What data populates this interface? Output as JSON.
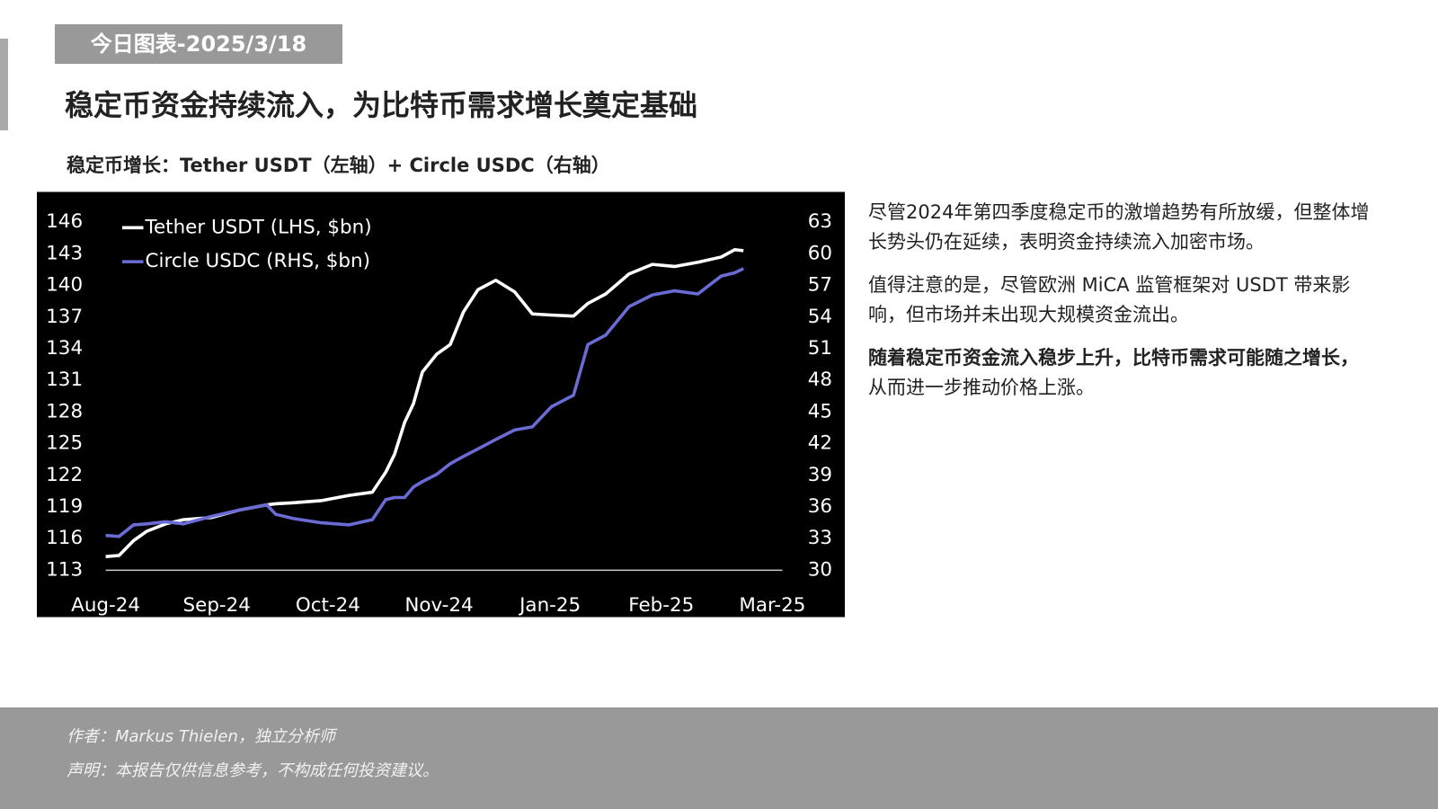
{
  "header": {
    "tag": "今日图表-2025/3/18",
    "title": "稳定币资金持续流入，为比特币需求增长奠定基础",
    "subtitle": "稳定币增长：Tether USDT（左轴）+ Circle USDC（右轴）"
  },
  "chart_data": {
    "type": "line",
    "x": [
      0,
      0.12,
      0.25,
      0.37,
      0.54,
      0.7,
      0.95,
      1.2,
      1.45,
      1.53,
      1.69,
      1.94,
      2.19,
      2.4,
      2.52,
      2.6,
      2.69,
      2.77,
      2.85,
      2.98,
      3.1,
      3.22,
      3.35,
      3.51,
      3.68,
      3.84,
      4.01,
      4.21,
      4.34,
      4.5,
      4.71,
      4.92,
      5.12,
      5.33,
      5.54,
      5.66,
      5.74
    ],
    "xlim": [
      0,
      6.09
    ],
    "xticks": [
      {
        "value": 0,
        "label": "Aug-24"
      },
      {
        "value": 1,
        "label": "Sep-24"
      },
      {
        "value": 2,
        "label": "Oct-24"
      },
      {
        "value": 3,
        "label": "Nov-24"
      },
      {
        "value": 4,
        "label": "Jan-25"
      },
      {
        "value": 5,
        "label": "Feb-25"
      },
      {
        "value": 6,
        "label": "Mar-25"
      }
    ],
    "ylim": [
      113,
      146
    ],
    "yticks": [
      113,
      116,
      119,
      122,
      125,
      128,
      131,
      134,
      137,
      140,
      143,
      146
    ],
    "y2lim": [
      30,
      63
    ],
    "y2ticks": [
      30,
      33,
      36,
      39,
      42,
      45,
      48,
      51,
      54,
      57,
      60,
      63
    ],
    "series": [
      {
        "name": "Tether USDT (LHS, $bn)",
        "color": "#ffffff",
        "values": [
          114.3,
          114.4,
          115.8,
          116.7,
          117.4,
          117.8,
          118.0,
          118.7,
          119.2,
          119.3,
          119.4,
          119.6,
          120.1,
          120.4,
          122.3,
          124.0,
          127.0,
          128.8,
          131.8,
          133.5,
          134.4,
          137.5,
          139.6,
          140.5,
          139.4,
          137.3,
          137.2,
          137.1,
          138.3,
          139.2,
          141.1,
          142.0,
          141.8,
          142.2,
          142.7,
          143.4,
          143.3
        ]
      },
      {
        "name": "Circle USDC (RHS, $bn)",
        "color": "#6b6bd6",
        "axis": "y2",
        "values": [
          33.3,
          33.2,
          34.3,
          34.4,
          34.6,
          34.4,
          35.1,
          35.7,
          36.2,
          35.3,
          34.9,
          34.5,
          34.3,
          34.8,
          36.7,
          36.9,
          36.9,
          37.9,
          38.4,
          39.1,
          40.1,
          40.8,
          41.5,
          42.4,
          43.3,
          43.6,
          45.5,
          46.6,
          51.4,
          52.3,
          55.0,
          56.1,
          56.5,
          56.2,
          57.9,
          58.2,
          58.6
        ]
      }
    ],
    "legend": "upper left"
  },
  "text": {
    "p1": "尽管2024年第四季度稳定币的激增趋势有所放缓，但整体增长势头仍在延续，表明资金持续流入加密市场。",
    "p2": "值得注意的是，尽管欧洲 MiCA 监管框架对 USDT 带来影响，但市场并未出现大规模资金流出。",
    "p3_bold": "随着稳定币资金流入稳步上升，比特币需求可能随之增长，",
    "p3_rest": "从而进一步推动价格上涨。"
  },
  "footer": {
    "author": "作者：Markus Thielen，独立分析师",
    "disclaimer": "声明：本报告仅供信息参考，不构成任何投资建议。"
  }
}
